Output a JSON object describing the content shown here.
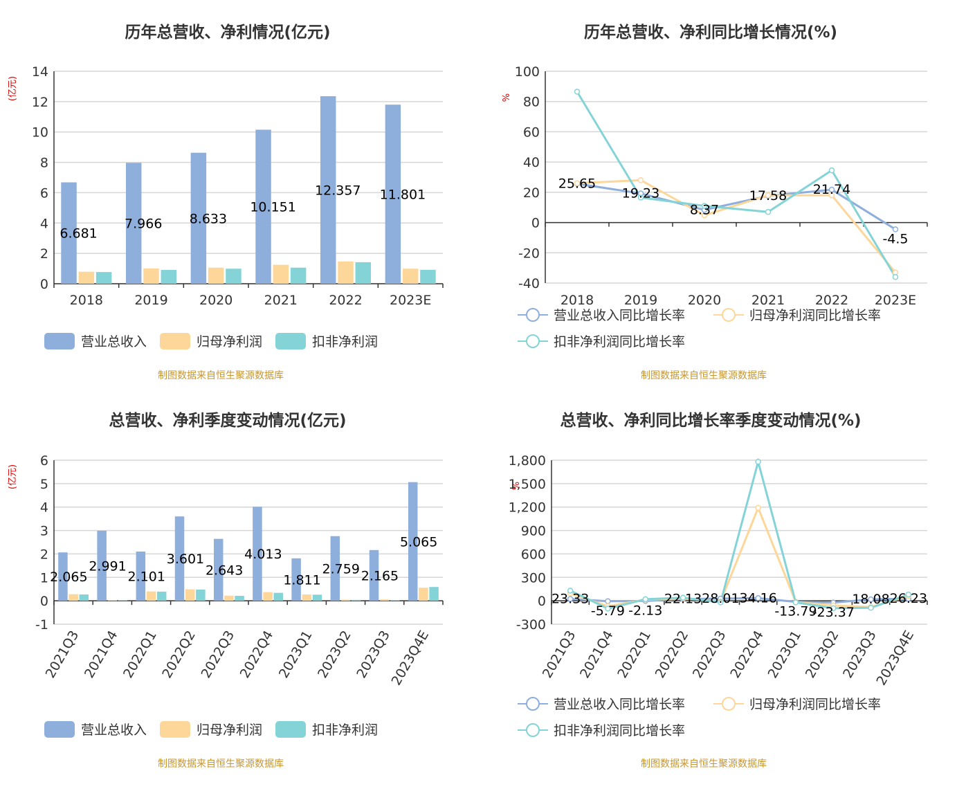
{
  "colors": {
    "revenue": "#8eaedc",
    "parent_profit": "#fdd699",
    "deducted_profit": "#83d3d7",
    "grid": "#d6d6d6",
    "axis": "#333333",
    "unit": "#e00000",
    "source": "#c8962e"
  },
  "source_note": "制图数据来自恒生聚源数据库",
  "chart_data": [
    {
      "type": "bar",
      "title": "历年总营收、净利情况(亿元)",
      "ylabel": "(亿元)",
      "ylim": [
        0,
        14
      ],
      "yticks": [
        0,
        2,
        4,
        6,
        8,
        10,
        12,
        14
      ],
      "categories": [
        "2018",
        "2019",
        "2020",
        "2021",
        "2022",
        "2023E"
      ],
      "series": [
        {
          "name": "营业总收入",
          "values": [
            6.681,
            7.966,
            8.633,
            10.151,
            12.357,
            11.801
          ],
          "labels": [
            "6.681",
            "7.966",
            "8.633",
            "10.151",
            "12.357",
            "11.801"
          ]
        },
        {
          "name": "归母净利润",
          "values": [
            0.79,
            1.01,
            1.06,
            1.25,
            1.47,
            0.99
          ]
        },
        {
          "name": "扣非净利润",
          "values": [
            0.77,
            0.91,
            0.99,
            1.06,
            1.42,
            0.92
          ]
        }
      ]
    },
    {
      "type": "line",
      "title": "历年总营收、净利同比增长情况(%)",
      "ylabel": "%",
      "ylim": [
        -40,
        100
      ],
      "yticks": [
        -40,
        -20,
        0,
        20,
        40,
        60,
        80,
        100
      ],
      "categories": [
        "2018",
        "2019",
        "2020",
        "2021",
        "2022",
        "2023E"
      ],
      "series": [
        {
          "name": "营业总收入同比增长率",
          "values": [
            25.65,
            19.23,
            8.37,
            17.58,
            21.74,
            -4.5
          ],
          "labels": [
            "25.65",
            "19.23",
            "8.37",
            "17.58",
            "21.74",
            "-4.5"
          ]
        },
        {
          "name": "归母净利润同比增长率",
          "values": [
            26.0,
            28.0,
            4.8,
            18.0,
            18.0,
            -33.0
          ]
        },
        {
          "name": "扣非净利润同比增长率",
          "values": [
            86.5,
            16.5,
            11.0,
            7.0,
            34.5,
            -36.0
          ]
        }
      ]
    },
    {
      "type": "bar",
      "title": "总营收、净利季度变动情况(亿元)",
      "ylabel": "(亿元)",
      "ylim": [
        -1,
        6
      ],
      "yticks": [
        -1,
        0,
        1,
        2,
        3,
        4,
        5,
        6
      ],
      "categories": [
        "2021Q3",
        "2021Q4",
        "2022Q1",
        "2022Q2",
        "2022Q3",
        "2022Q4",
        "2023Q1",
        "2023Q2",
        "2023Q3",
        "2023Q4E"
      ],
      "series": [
        {
          "name": "营业总收入",
          "values": [
            2.065,
            2.991,
            2.101,
            3.601,
            2.643,
            4.013,
            1.811,
            2.759,
            2.165,
            5.065
          ],
          "labels": [
            "2.065",
            "2.991",
            "2.101",
            "3.601",
            "2.643",
            "4.013",
            "1.811",
            "2.759",
            "2.165",
            "5.065"
          ]
        },
        {
          "name": "归母净利润",
          "values": [
            0.28,
            0.03,
            0.4,
            0.49,
            0.22,
            0.37,
            0.27,
            0.05,
            0.06,
            0.56
          ]
        },
        {
          "name": "扣非净利润",
          "values": [
            0.27,
            0.02,
            0.39,
            0.48,
            0.21,
            0.34,
            0.26,
            0.04,
            0.03,
            0.59
          ]
        }
      ]
    },
    {
      "type": "line",
      "title": "总营收、净利同比增长率季度变动情况(%)",
      "ylabel": "%",
      "ylim": [
        -300,
        1800
      ],
      "yticks": [
        -300,
        0,
        300,
        600,
        900,
        1200,
        1500,
        1800
      ],
      "ytick_labels": [
        "-300",
        "0",
        "300",
        "600",
        "900",
        "1,200",
        "1,500",
        "1,800"
      ],
      "categories": [
        "2021Q3",
        "2021Q4",
        "2022Q1",
        "2022Q2",
        "2022Q3",
        "2022Q4",
        "2023Q1",
        "2023Q2",
        "2023Q3",
        "2023Q4E"
      ],
      "series": [
        {
          "name": "营业总收入同比增长率",
          "values": [
            23.33,
            -5.79,
            -2.13,
            22.13,
            28.01,
            34.16,
            -13.79,
            -23.37,
            18.08,
            26.23
          ],
          "labels": [
            "23.33",
            "-5.79",
            "-2.13",
            "22.13",
            "28.01",
            "34.16",
            "-13.79",
            "-23.37",
            "18.08",
            "26.23"
          ]
        },
        {
          "name": "归母净利润同比增长率",
          "values": [
            95,
            -70,
            15,
            30,
            -10,
            1190,
            -15,
            -60,
            -80,
            60
          ]
        },
        {
          "name": "扣非净利润同比增长率",
          "values": [
            130,
            -100,
            20,
            40,
            -20,
            1780,
            -20,
            -95,
            -90,
            80
          ]
        }
      ]
    }
  ]
}
